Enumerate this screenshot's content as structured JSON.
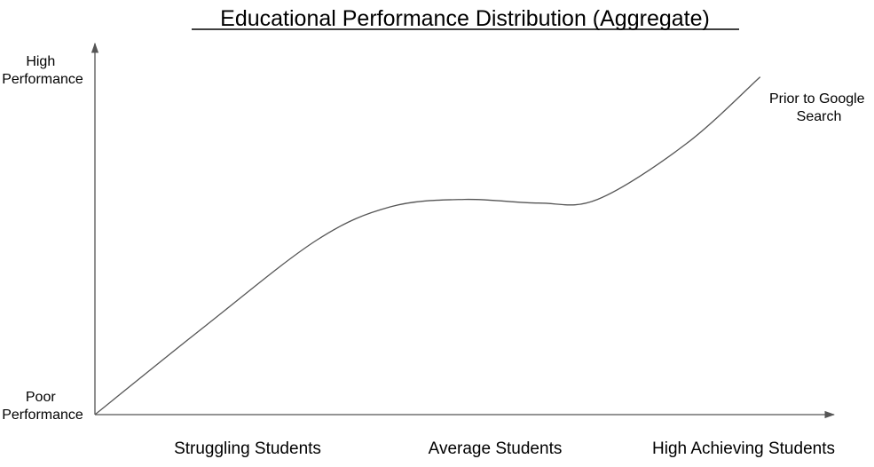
{
  "chart_data": {
    "type": "line",
    "title": "Educational Performance Distribution (Aggregate)",
    "y_tick_labels": {
      "top": [
        "High",
        "Performance"
      ],
      "bottom": [
        "Poor",
        "Performance"
      ]
    },
    "categories": [
      "Struggling Students",
      "Average Students",
      "High Achieving Students"
    ],
    "xlim": [
      0,
      10
    ],
    "ylim": [
      0,
      10
    ],
    "grid": false,
    "series": [
      {
        "name_lines": [
          "Prior to Google",
          "Search"
        ],
        "color": "#555555",
        "x": [
          0,
          1.5,
          3.0,
          4.0,
          5.0,
          6.0,
          6.8,
          8.0,
          9.0
        ],
        "y": [
          0,
          2.4,
          4.7,
          5.6,
          5.8,
          5.7,
          5.8,
          7.3,
          9.1
        ]
      }
    ]
  }
}
